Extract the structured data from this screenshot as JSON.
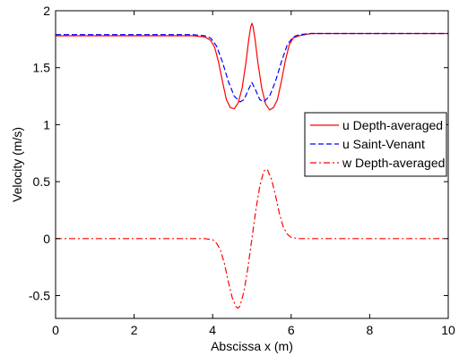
{
  "chart_data": {
    "type": "line",
    "title": "",
    "xlabel": "Abscissa x (m)",
    "ylabel": "Velocity (m/s)",
    "xlim": [
      0,
      10
    ],
    "ylim": [
      -0.7,
      2
    ],
    "xticks": [
      0,
      2,
      4,
      6,
      8,
      10
    ],
    "xtick_labels": [
      "0",
      "2",
      "4",
      "6",
      "8",
      "10"
    ],
    "yticks": [
      -0.5,
      0,
      0.5,
      1,
      1.5,
      2
    ],
    "ytick_labels": [
      "-0.5",
      "0",
      "0.5",
      "1",
      "1.5",
      "2"
    ],
    "grid": false,
    "legend_position": "right",
    "series": [
      {
        "name": "u Depth-averaged",
        "color": "#ff0000",
        "dash": "solid",
        "x": [
          0,
          3.5,
          3.8,
          3.95,
          4.05,
          4.15,
          4.25,
          4.35,
          4.45,
          4.55,
          4.65,
          4.75,
          4.85,
          4.92,
          4.97,
          5.0,
          5.03,
          5.08,
          5.15,
          5.25,
          5.35,
          5.45,
          5.55,
          5.65,
          5.75,
          5.85,
          5.95,
          6.05,
          6.2,
          6.5,
          10
        ],
        "y": [
          1.78,
          1.78,
          1.77,
          1.74,
          1.68,
          1.55,
          1.38,
          1.22,
          1.15,
          1.14,
          1.19,
          1.32,
          1.55,
          1.75,
          1.86,
          1.89,
          1.86,
          1.75,
          1.55,
          1.32,
          1.18,
          1.13,
          1.15,
          1.22,
          1.38,
          1.56,
          1.7,
          1.76,
          1.78,
          1.8,
          1.8
        ]
      },
      {
        "name": "u Saint-Venant",
        "color": "#0000ff",
        "dash": "dashed",
        "x": [
          0,
          3.5,
          3.8,
          3.95,
          4.1,
          4.25,
          4.4,
          4.55,
          4.7,
          4.8,
          4.9,
          5.0,
          5.1,
          5.2,
          5.3,
          5.45,
          5.6,
          5.75,
          5.9,
          6.05,
          6.2,
          6.5,
          10
        ],
        "y": [
          1.79,
          1.79,
          1.78,
          1.76,
          1.69,
          1.55,
          1.38,
          1.25,
          1.2,
          1.22,
          1.3,
          1.37,
          1.3,
          1.22,
          1.2,
          1.25,
          1.38,
          1.55,
          1.7,
          1.77,
          1.79,
          1.8,
          1.8
        ]
      },
      {
        "name": "w Depth-averaged",
        "color": "#ff0000",
        "dash": "dashdot",
        "x": [
          0,
          3.8,
          4.0,
          4.1,
          4.2,
          4.3,
          4.4,
          4.5,
          4.6,
          4.65,
          4.7,
          4.8,
          4.9,
          5.0,
          5.1,
          5.2,
          5.3,
          5.35,
          5.4,
          5.5,
          5.6,
          5.7,
          5.8,
          5.9,
          6.0,
          6.2,
          10
        ],
        "y": [
          0,
          0,
          -0.01,
          -0.04,
          -0.1,
          -0.22,
          -0.38,
          -0.52,
          -0.6,
          -0.61,
          -0.59,
          -0.46,
          -0.25,
          0.0,
          0.25,
          0.46,
          0.59,
          0.61,
          0.6,
          0.52,
          0.38,
          0.22,
          0.1,
          0.04,
          0.01,
          0,
          0
        ]
      }
    ]
  }
}
